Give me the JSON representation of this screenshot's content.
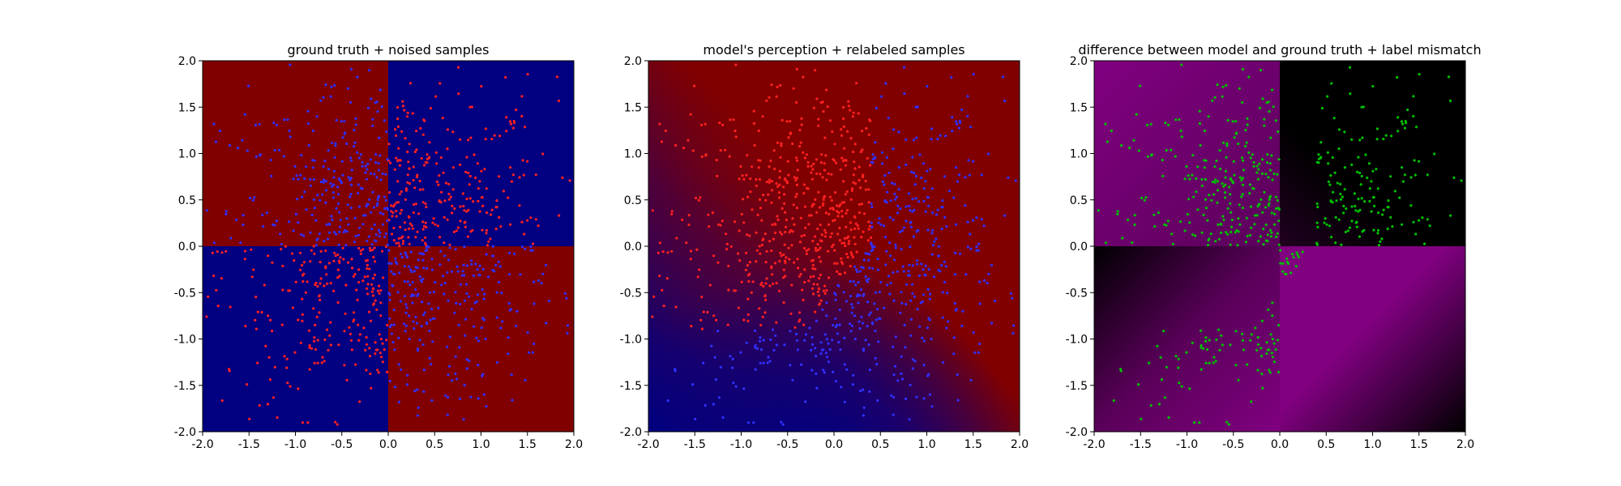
{
  "chart_data": [
    {
      "type": "heatmap",
      "title": "ground truth + noised samples",
      "xlabel": "",
      "ylabel": "",
      "xlim": [
        -2.0,
        2.0
      ],
      "ylim": [
        -2.0,
        2.0
      ],
      "x_ticks": [
        "-2.0",
        "-1.5",
        "-1.0",
        "-0.5",
        "0.0",
        "0.5",
        "1.0",
        "1.5",
        "2.0"
      ],
      "y_ticks": [
        "-2.0",
        "-1.5",
        "-1.0",
        "-0.5",
        "0.0",
        "0.5",
        "1.0",
        "1.5",
        "2.0"
      ],
      "background": {
        "kind": "quadrants",
        "colors": {
          "top_left": "#800000",
          "top_right": "#000080",
          "bottom_left": "#000080",
          "bottom_right": "#800000"
        }
      },
      "point_colors": {
        "red": "#ff2020",
        "blue": "#3030ff"
      },
      "legend": "none",
      "grid": false
    },
    {
      "type": "heatmap",
      "title": "model's perception + relabeled samples",
      "xlabel": "",
      "ylabel": "",
      "xlim": [
        -2.0,
        2.0
      ],
      "ylim": [
        -2.0,
        2.0
      ],
      "x_ticks": [
        "-2.0",
        "-1.5",
        "-1.0",
        "-0.5",
        "0.0",
        "0.5",
        "1.0",
        "1.5",
        "2.0"
      ],
      "y_ticks": [
        "-2.0",
        "-1.5",
        "-1.0",
        "-0.5",
        "0.0",
        "0.5",
        "1.0",
        "1.5",
        "2.0"
      ],
      "background": {
        "kind": "smooth",
        "colors": {
          "high": "#800000",
          "low": "#000080"
        }
      },
      "point_colors": {
        "red": "#ff2020",
        "blue": "#3030ff"
      },
      "legend": "none",
      "grid": false
    },
    {
      "type": "heatmap",
      "title": "difference between model and ground truth + label mismatch",
      "xlabel": "",
      "ylabel": "",
      "xlim": [
        -2.0,
        2.0
      ],
      "ylim": [
        -2.0,
        2.0
      ],
      "x_ticks": [
        "-2.0",
        "-1.5",
        "-1.0",
        "-0.5",
        "0.0",
        "0.5",
        "1.0",
        "1.5",
        "2.0"
      ],
      "y_ticks": [
        "-2.0",
        "-1.5",
        "-1.0",
        "-0.5",
        "0.0",
        "0.5",
        "1.0",
        "1.5",
        "2.0"
      ],
      "background": {
        "kind": "difference",
        "colors": {
          "high": "#800080",
          "low": "#000000"
        }
      },
      "point_colors": {
        "mismatch": "#00c000"
      },
      "legend": "none",
      "grid": false
    }
  ]
}
